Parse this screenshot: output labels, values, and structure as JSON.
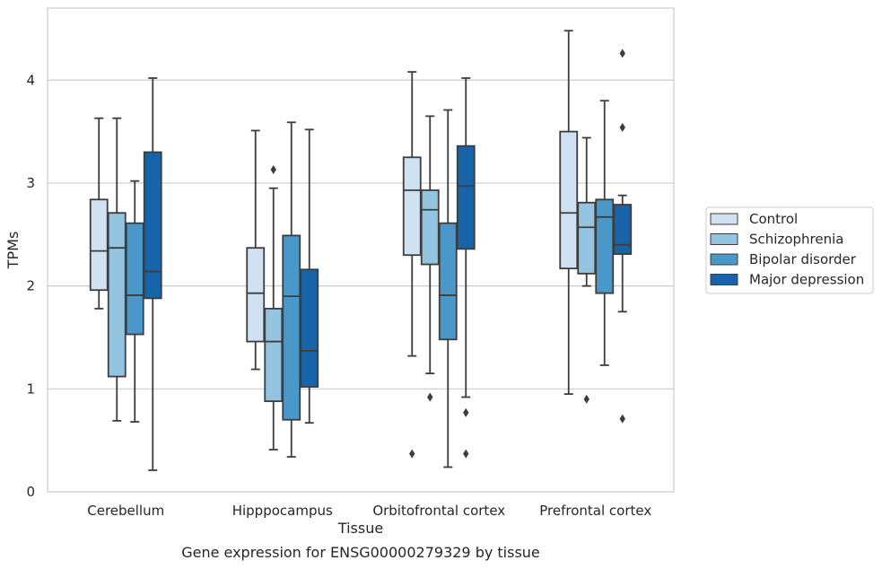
{
  "chart_data": {
    "type": "box",
    "caption": "Gene expression for ENSG00000279329 by tissue",
    "xlabel": "Tissue",
    "ylabel": "TPMs",
    "ylim": [
      0,
      4.7
    ],
    "yticks": [
      0,
      1,
      2,
      3,
      4
    ],
    "grid": "horizontal",
    "legend_position": "right",
    "categories": [
      "Cerebellum",
      "Hipppocampus",
      "Orbitofrontal cortex",
      "Prefrontal cortex"
    ],
    "series": [
      {
        "name": "Control",
        "color": "#d0e1f2",
        "boxes": [
          {
            "whislo": 1.78,
            "q1": 1.96,
            "med": 2.34,
            "q3": 2.84,
            "whishi": 3.63,
            "fliers": []
          },
          {
            "whislo": 1.19,
            "q1": 1.46,
            "med": 1.93,
            "q3": 2.37,
            "whishi": 3.51,
            "fliers": []
          },
          {
            "whislo": 1.32,
            "q1": 2.3,
            "med": 2.93,
            "q3": 3.25,
            "whishi": 4.08,
            "fliers": [
              0.37
            ]
          },
          {
            "whislo": 0.95,
            "q1": 2.17,
            "med": 2.71,
            "q3": 3.5,
            "whishi": 4.48,
            "fliers": []
          }
        ]
      },
      {
        "name": "Schizophrenia",
        "color": "#94c4df",
        "boxes": [
          {
            "whislo": 0.69,
            "q1": 1.12,
            "med": 2.37,
            "q3": 2.71,
            "whishi": 3.63,
            "fliers": []
          },
          {
            "whislo": 0.41,
            "q1": 0.88,
            "med": 1.46,
            "q3": 1.78,
            "whishi": 2.95,
            "fliers": [
              3.13
            ]
          },
          {
            "whislo": 1.15,
            "q1": 2.21,
            "med": 2.74,
            "q3": 2.93,
            "whishi": 3.65,
            "fliers": [
              0.92
            ]
          },
          {
            "whislo": 2.0,
            "q1": 2.12,
            "med": 2.57,
            "q3": 2.81,
            "whishi": 3.44,
            "fliers": [
              0.9
            ]
          }
        ]
      },
      {
        "name": "Bipolar disorder",
        "color": "#4a98c9",
        "boxes": [
          {
            "whislo": 0.68,
            "q1": 1.53,
            "med": 1.91,
            "q3": 2.61,
            "whishi": 3.02,
            "fliers": []
          },
          {
            "whislo": 0.34,
            "q1": 0.7,
            "med": 1.9,
            "q3": 2.49,
            "whishi": 3.59,
            "fliers": []
          },
          {
            "whislo": 0.24,
            "q1": 1.48,
            "med": 1.91,
            "q3": 2.61,
            "whishi": 3.71,
            "fliers": []
          },
          {
            "whislo": 1.23,
            "q1": 1.93,
            "med": 2.67,
            "q3": 2.84,
            "whishi": 3.8,
            "fliers": []
          }
        ]
      },
      {
        "name": "Major depression",
        "color": "#1764ab",
        "boxes": [
          {
            "whislo": 0.21,
            "q1": 1.88,
            "med": 2.14,
            "q3": 3.3,
            "whishi": 4.02,
            "fliers": []
          },
          {
            "whislo": 0.67,
            "q1": 1.02,
            "med": 1.37,
            "q3": 2.16,
            "whishi": 3.52,
            "fliers": []
          },
          {
            "whislo": 0.92,
            "q1": 2.36,
            "med": 2.97,
            "q3": 3.36,
            "whishi": 4.02,
            "fliers": [
              0.77,
              0.37
            ]
          },
          {
            "whislo": 1.75,
            "q1": 2.31,
            "med": 2.4,
            "q3": 2.79,
            "whishi": 2.88,
            "fliers": [
              4.26,
              3.54,
              0.71
            ]
          }
        ]
      }
    ]
  }
}
